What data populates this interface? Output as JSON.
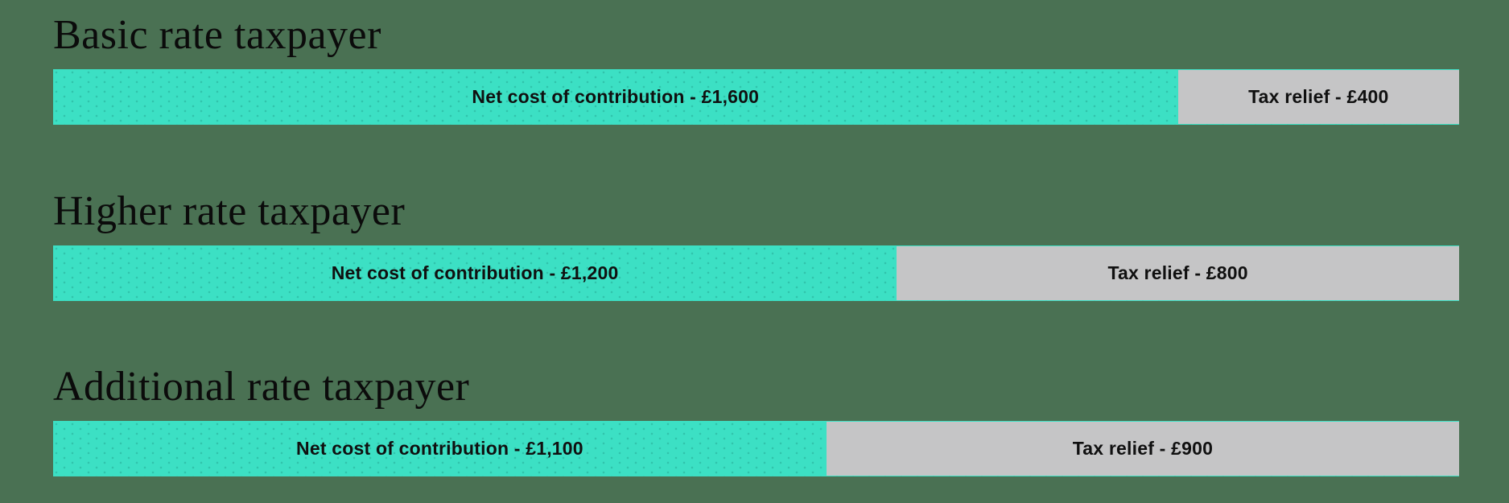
{
  "page": {
    "background_color": "#4a7153",
    "heading_text_color": "#0b0b0b",
    "bar_label_text_color": "#101010"
  },
  "chart_data": {
    "type": "bar",
    "variant": "horizontal-stacked",
    "title": "",
    "xlabel": "",
    "ylabel": "",
    "unit": "GBP",
    "gross_contribution_per_row": 2000,
    "xlim": [
      0,
      2000
    ],
    "grid": false,
    "legend_position": "none",
    "series_names": [
      "Net cost of contribution",
      "Tax relief"
    ],
    "colors": {
      "background": "#4a7153",
      "net_cost": "#3ce0c4",
      "tax_relief": "#c5c5c6"
    },
    "rows": [
      {
        "heading": "Basic rate taxpayer",
        "net_cost_value": 1600,
        "tax_relief_value": 400,
        "net_cost_label": "Net cost of contribution - £1,600",
        "tax_relief_label": "Tax relief - £400",
        "net_cost_pct": 80,
        "tax_relief_pct": 20
      },
      {
        "heading": "Higher rate taxpayer",
        "net_cost_value": 1200,
        "tax_relief_value": 800,
        "net_cost_label": "Net cost of contribution - £1,200",
        "tax_relief_label": "Tax relief - £800",
        "net_cost_pct": 60,
        "tax_relief_pct": 40
      },
      {
        "heading": "Additional rate taxpayer",
        "net_cost_value": 1100,
        "tax_relief_value": 900,
        "net_cost_label": "Net cost of contribution - £1,100",
        "tax_relief_label": "Tax relief - £900",
        "net_cost_pct": 55,
        "tax_relief_pct": 45
      }
    ]
  }
}
